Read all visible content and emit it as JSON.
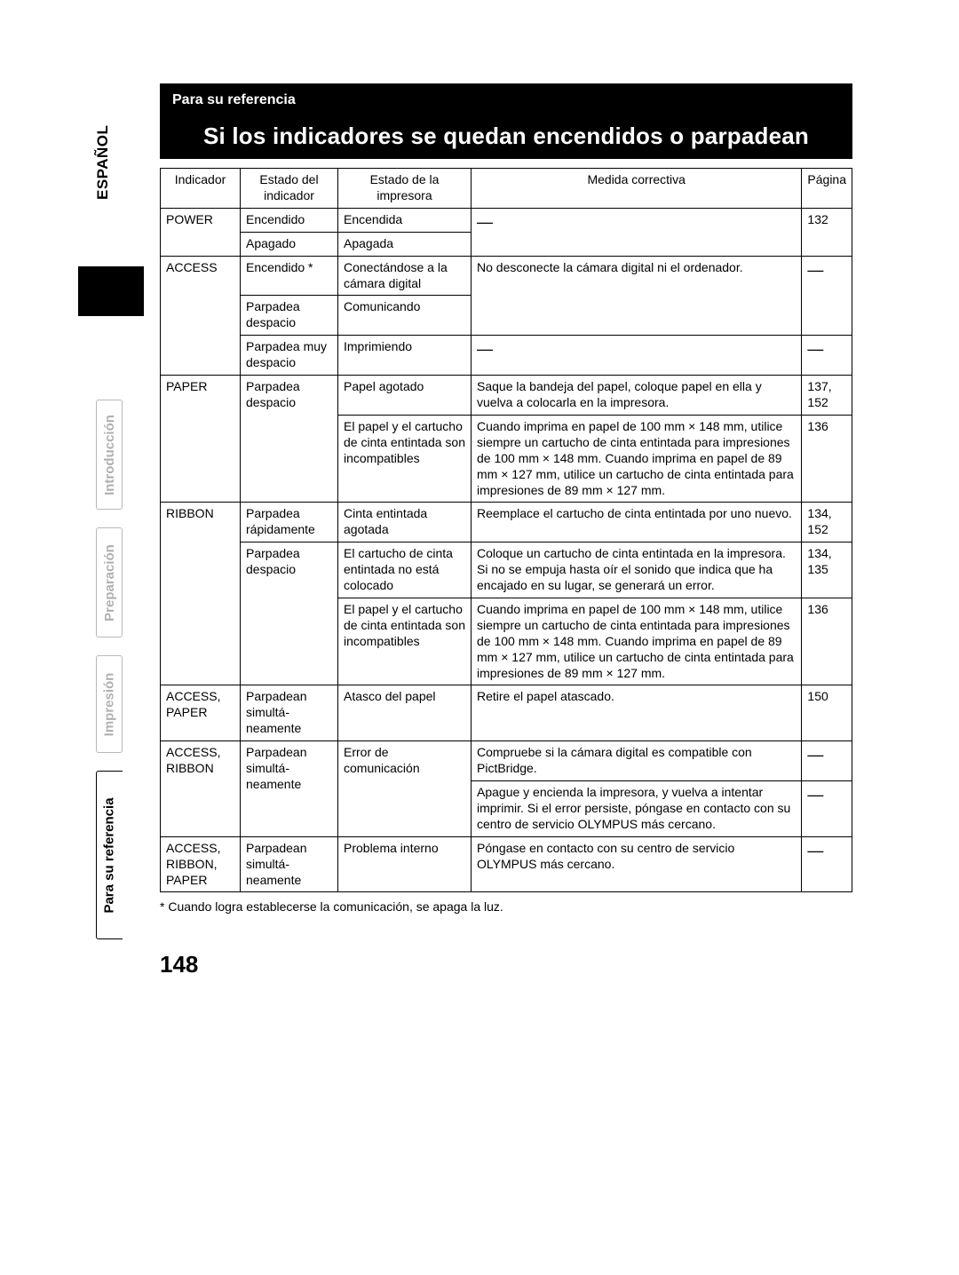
{
  "language_label": "ESPAÑOL",
  "sidebar_tabs": {
    "t1": "Introducción",
    "t2": "Preparación",
    "t3": "Impresión",
    "t4": "Para su referencia"
  },
  "section_label": "Para su referencia",
  "title": "Si los indicadores se quedan encendidos o parpadean",
  "headers": {
    "indicador": "Indicador",
    "estado_ind": "Estado del indicador",
    "estado_imp": "Estado de la impresora",
    "medida": "Medida correctiva",
    "pagina": "Página"
  },
  "rows": {
    "power": {
      "ind": "POWER",
      "r1_est": "Encendido",
      "r1_imp": "Encendida",
      "r2_est": "Apagado",
      "r2_imp": "Apagada",
      "pagina": "132"
    },
    "access": {
      "ind": "ACCESS",
      "r1_est": "Encendido *",
      "r1_imp": "Conectándose a la cámara digital",
      "r1_med": "No desconecte la cámara digital ni el ordenador.",
      "r2_est": "Parpadea despacio",
      "r2_imp": "Comunicando",
      "r3_est": "Parpadea muy despacio",
      "r3_imp": "Imprimiendo"
    },
    "paper": {
      "ind": "PAPER",
      "r1_est": "Parpadea despacio",
      "r1_imp": "Papel agotado",
      "r1_med": "Saque la bandeja del papel, coloque papel en ella y vuelva a colocarla en la impresora.",
      "r1_pag": "137, 152",
      "r2_imp": "El papel y el cartucho de cinta entintada son incompatibles",
      "r2_med": "Cuando imprima en papel de 100 mm × 148 mm, utilice siempre un cartucho de cinta entintada para impresiones de 100 mm × 148 mm. Cuando imprima en papel de 89 mm × 127 mm, utilice un cartucho de cinta entintada para impresiones de 89 mm × 127 mm.",
      "r2_pag": "136"
    },
    "ribbon": {
      "ind": "RIBBON",
      "r1_est": "Parpadea rápidamente",
      "r1_imp": "Cinta entintada agotada",
      "r1_med": "Reemplace el cartucho de cinta entintada por uno nuevo.",
      "r1_pag": "134, 152",
      "r2_est": "Parpadea despacio",
      "r2_imp": "El cartucho de cinta entintada no está colocado",
      "r2_med": "Coloque un cartucho de cinta entintada en la impresora. Si no se empuja hasta oír el sonido que indica que ha encajado en su lugar, se generará un error.",
      "r2_pag": "134, 135",
      "r3_imp": "El papel y el cartucho de cinta entintada son incompatibles",
      "r3_med": "Cuando imprima en papel de 100 mm × 148 mm, utilice siempre un cartucho de cinta entintada para impresiones de 100 mm × 148 mm. Cuando imprima en papel de 89 mm × 127 mm, utilice un cartucho de cinta entintada para impresiones de 89 mm × 127 mm.",
      "r3_pag": "136"
    },
    "acc_paper": {
      "ind": "ACCESS, PAPER",
      "est": "Parpadean simultá-neamente",
      "imp": "Atasco del papel",
      "med": "Retire el papel atascado.",
      "pag": "150"
    },
    "acc_ribbon": {
      "ind": "ACCESS, RIBBON",
      "est": "Parpadean simultá-neamente",
      "r1_imp": "Error de comunicación",
      "r1_med": "Compruebe si la cámara digital es compatible con PictBridge.",
      "r2_med": "Apague y encienda la impresora, y vuelva a intentar imprimir. Si el error persiste, póngase en contacto con su centro de servicio OLYMPUS más cercano."
    },
    "acc_rib_pap": {
      "ind": "ACCESS, RIBBON, PAPER",
      "est": "Parpadean simultá-neamente",
      "imp": "Problema interno",
      "med": "Póngase en contacto con su centro de servicio OLYMPUS más cercano."
    }
  },
  "footnote": "* Cuando logra establecerse la comunicación, se apaga la luz.",
  "page_number": "148",
  "dash": "—"
}
